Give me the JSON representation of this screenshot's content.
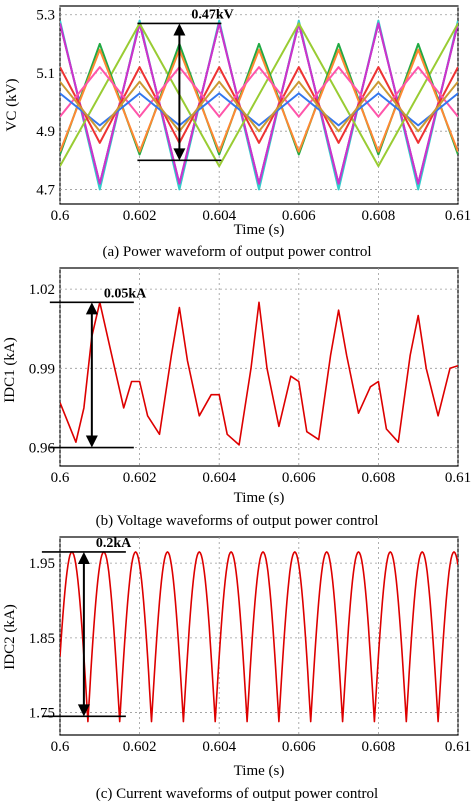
{
  "chart_data": [
    {
      "id": "a",
      "type": "line",
      "caption": "(a) Power waveform of output power control",
      "xlabel": "Time (s)",
      "ylabel": "VC (kV)",
      "xlim": [
        0.6,
        0.61
      ],
      "ylim": [
        4.65,
        5.33
      ],
      "xticks": [
        "0.6",
        "0.602",
        "0.604",
        "0.606",
        "0.608",
        "0.61"
      ],
      "yticks": [
        "5.3",
        "5.1",
        "4.9",
        "4.7"
      ],
      "ytick_values": [
        5.3,
        5.1,
        4.9,
        4.7
      ],
      "grid": true,
      "annotation": {
        "text": "0.47kV",
        "from": 4.8,
        "to": 5.27,
        "x": 0.603
      },
      "series": [
        {
          "color": "#33cccc",
          "x": [
            0.6,
            0.601,
            0.602,
            0.603,
            0.604,
            0.605,
            0.606,
            0.607,
            0.608,
            0.609,
            0.61
          ],
          "values": [
            5.28,
            4.7,
            5.28,
            4.7,
            5.28,
            4.7,
            5.28,
            4.7,
            5.28,
            4.7,
            5.28
          ]
        },
        {
          "color": "#8844aa",
          "x": [
            0.6,
            0.601,
            0.602,
            0.603,
            0.604,
            0.605,
            0.606,
            0.607,
            0.608,
            0.609,
            0.61
          ],
          "values": [
            5.27,
            4.72,
            5.27,
            4.72,
            5.27,
            4.72,
            5.27,
            4.72,
            5.27,
            4.72,
            5.27
          ]
        },
        {
          "color": "#cc33cc",
          "x": [
            0.6,
            0.601,
            0.602,
            0.603,
            0.604,
            0.605,
            0.606,
            0.607,
            0.608,
            0.609,
            0.61
          ],
          "values": [
            5.27,
            4.72,
            5.27,
            4.72,
            5.27,
            4.72,
            5.27,
            4.72,
            5.27,
            4.72,
            5.27
          ]
        },
        {
          "color": "#99cc33",
          "x": [
            0.6,
            0.602,
            0.604,
            0.606,
            0.608,
            0.61
          ],
          "values": [
            4.78,
            5.27,
            4.78,
            5.27,
            4.78,
            5.27
          ]
        },
        {
          "color": "#22aa44",
          "x": [
            0.6,
            0.601,
            0.602,
            0.603,
            0.604,
            0.605,
            0.606,
            0.607,
            0.608,
            0.609,
            0.61
          ],
          "values": [
            4.82,
            5.2,
            4.82,
            5.2,
            4.82,
            5.2,
            4.82,
            5.2,
            4.82,
            5.2,
            4.82
          ]
        },
        {
          "color": "#ff8833",
          "x": [
            0.6,
            0.601,
            0.602,
            0.603,
            0.604,
            0.605,
            0.606,
            0.607,
            0.608,
            0.609,
            0.61
          ],
          "values": [
            4.83,
            5.18,
            4.83,
            5.18,
            4.83,
            5.18,
            4.83,
            5.18,
            4.83,
            5.18,
            4.83
          ]
        },
        {
          "color": "#ee3333",
          "x": [
            0.6,
            0.601,
            0.602,
            0.603,
            0.604,
            0.605,
            0.606,
            0.607,
            0.608,
            0.609,
            0.61
          ],
          "values": [
            5.12,
            4.86,
            5.12,
            4.86,
            5.12,
            4.86,
            5.12,
            4.86,
            5.12,
            4.86,
            5.12
          ]
        },
        {
          "color": "#ff55aa",
          "x": [
            0.6,
            0.601,
            0.602,
            0.603,
            0.604,
            0.605,
            0.606,
            0.607,
            0.608,
            0.609,
            0.61
          ],
          "values": [
            4.95,
            5.12,
            4.95,
            5.12,
            4.95,
            5.12,
            4.95,
            5.12,
            4.95,
            5.12,
            4.95
          ]
        },
        {
          "color": "#3377ee",
          "x": [
            0.6,
            0.601,
            0.602,
            0.603,
            0.604,
            0.605,
            0.606,
            0.607,
            0.608,
            0.609,
            0.61
          ],
          "values": [
            5.03,
            4.92,
            5.03,
            4.92,
            5.03,
            4.92,
            5.03,
            4.92,
            5.03,
            4.92,
            5.03
          ]
        },
        {
          "color": "#cc9933",
          "x": [
            0.6,
            0.601,
            0.602,
            0.603,
            0.604,
            0.605,
            0.606,
            0.607,
            0.608,
            0.609,
            0.61
          ],
          "values": [
            5.07,
            4.9,
            5.07,
            4.9,
            5.07,
            4.9,
            5.07,
            4.9,
            5.07,
            4.9,
            5.07
          ]
        }
      ]
    },
    {
      "id": "b",
      "type": "line",
      "caption": "(b) Voltage waveforms of output power control",
      "xlabel": "Time (s)",
      "ylabel": "IDC1 (kA)",
      "xlim": [
        0.6,
        0.61
      ],
      "ylim": [
        0.953,
        1.028
      ],
      "xticks": [
        "0.6",
        "0.602",
        "0.604",
        "0.606",
        "0.608",
        "0.61"
      ],
      "yticks": [
        "1.02",
        "0.99",
        "0.96"
      ],
      "ytick_values": [
        1.02,
        0.99,
        0.96
      ],
      "grid": true,
      "annotation": {
        "text": "0.05kA",
        "from": 0.96,
        "to": 1.015,
        "x": 0.6008
      },
      "series": [
        {
          "color": "#dd0000",
          "x": [
            0.6,
            0.6004,
            0.6006,
            0.6008,
            0.601,
            0.6013,
            0.6016,
            0.6018,
            0.602,
            0.6022,
            0.6025,
            0.6028,
            0.603,
            0.6032,
            0.6035,
            0.6038,
            0.604,
            0.6042,
            0.6045,
            0.6048,
            0.605,
            0.6052,
            0.6055,
            0.6058,
            0.606,
            0.6062,
            0.6065,
            0.6068,
            0.607,
            0.6072,
            0.6075,
            0.6078,
            0.608,
            0.6082,
            0.6085,
            0.6088,
            0.609,
            0.6092,
            0.6095,
            0.6098,
            0.61
          ],
          "values": [
            0.977,
            0.962,
            0.975,
            1.002,
            1.015,
            0.995,
            0.975,
            0.985,
            0.985,
            0.972,
            0.965,
            0.995,
            1.013,
            0.993,
            0.972,
            0.98,
            0.98,
            0.965,
            0.961,
            0.99,
            1.015,
            0.99,
            0.968,
            0.987,
            0.985,
            0.966,
            0.963,
            0.995,
            1.012,
            0.995,
            0.973,
            0.983,
            0.985,
            0.967,
            0.962,
            0.995,
            1.01,
            0.99,
            0.972,
            0.99,
            0.991
          ]
        }
      ]
    },
    {
      "id": "c",
      "type": "line",
      "caption": "(c) Current waveforms of output power control",
      "xlabel": "Time (s)",
      "ylabel": "IDC2 (kA)",
      "xlim": [
        0.6,
        0.61
      ],
      "ylim": [
        1.72,
        1.985
      ],
      "xticks": [
        "0.6",
        "0.602",
        "0.604",
        "0.606",
        "0.608",
        "0.61"
      ],
      "yticks": [
        "1.95",
        "1.85",
        "1.75"
      ],
      "ytick_values": [
        1.95,
        1.85,
        1.75
      ],
      "grid": true,
      "annotation": {
        "text": "0.2kA",
        "from": 1.745,
        "to": 1.965,
        "x": 0.6006
      },
      "peak_period": 0.0008,
      "first_peak": 0.6003,
      "peak": 1.965,
      "trough": 1.738,
      "first_trough": 0.6019
    }
  ]
}
